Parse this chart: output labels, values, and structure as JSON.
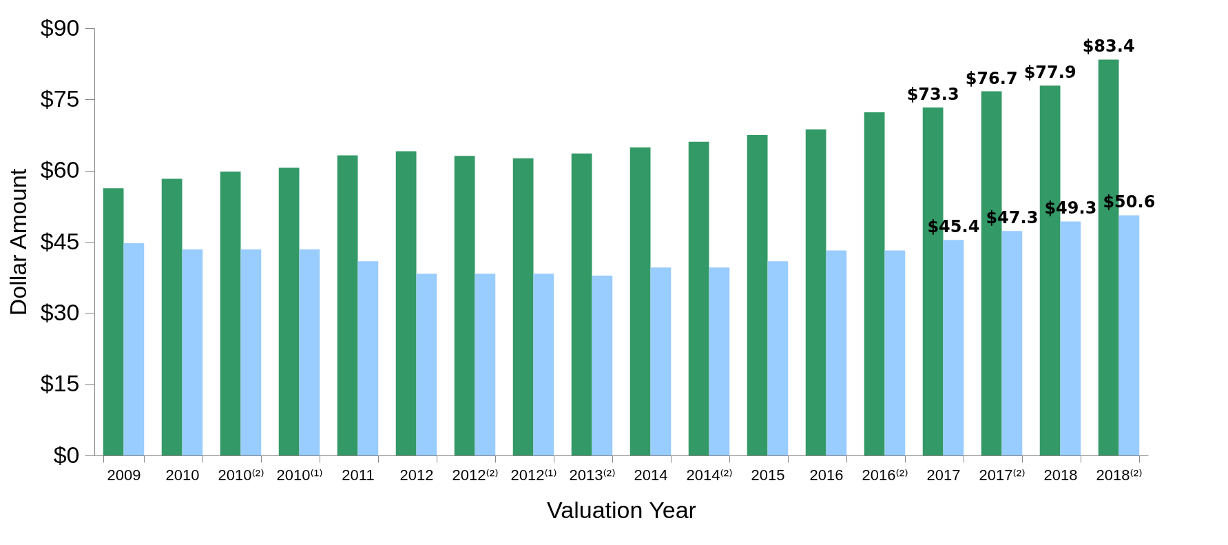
{
  "chart_data": {
    "type": "bar",
    "xlabel": "Valuation Year",
    "ylabel": "Dollar Amount",
    "categories": [
      "2009",
      "2010",
      "2010⁽²⁾",
      "2010⁽¹⁾",
      "2011",
      "2012",
      "2012⁽²⁾",
      "2012⁽¹⁾",
      "2013⁽²⁾",
      "2014",
      "2014⁽²⁾",
      "2015",
      "2016",
      "2016⁽²⁾",
      "2017",
      "2017⁽²⁾",
      "2018",
      "2018⁽²⁾"
    ],
    "series": [
      {
        "color": "#339966",
        "values": [
          56.3,
          58.3,
          59.8,
          60.6,
          63.2,
          64.1,
          63.1,
          62.6,
          63.6,
          64.9,
          66.1,
          67.5,
          68.7,
          72.3,
          73.3,
          76.7,
          77.9,
          83.4
        ],
        "value_labels": [
          null,
          null,
          null,
          null,
          null,
          null,
          null,
          null,
          null,
          null,
          null,
          null,
          null,
          null,
          "$73.3",
          "$76.7",
          "$77.9",
          "$83.4"
        ]
      },
      {
        "color": "#99ccff",
        "values": [
          44.7,
          43.4,
          43.4,
          43.4,
          40.9,
          38.3,
          38.3,
          38.3,
          37.9,
          39.6,
          39.6,
          40.9,
          43.2,
          43.2,
          45.4,
          47.3,
          49.3,
          50.6
        ],
        "value_labels": [
          null,
          null,
          null,
          null,
          null,
          null,
          null,
          null,
          null,
          null,
          null,
          null,
          null,
          null,
          "$45.4",
          "$47.3",
          "$49.3",
          "$50.6"
        ]
      }
    ],
    "ylim": [
      0,
      90
    ],
    "yticks": [
      {
        "value": 0,
        "label": "$0"
      },
      {
        "value": 15,
        "label": "$15"
      },
      {
        "value": 30,
        "label": "$30"
      },
      {
        "value": 45,
        "label": "$45"
      },
      {
        "value": 60,
        "label": "$60"
      },
      {
        "value": 75,
        "label": "$75"
      },
      {
        "value": 90,
        "label": "$90"
      }
    ],
    "grid": false,
    "legend": false
  }
}
